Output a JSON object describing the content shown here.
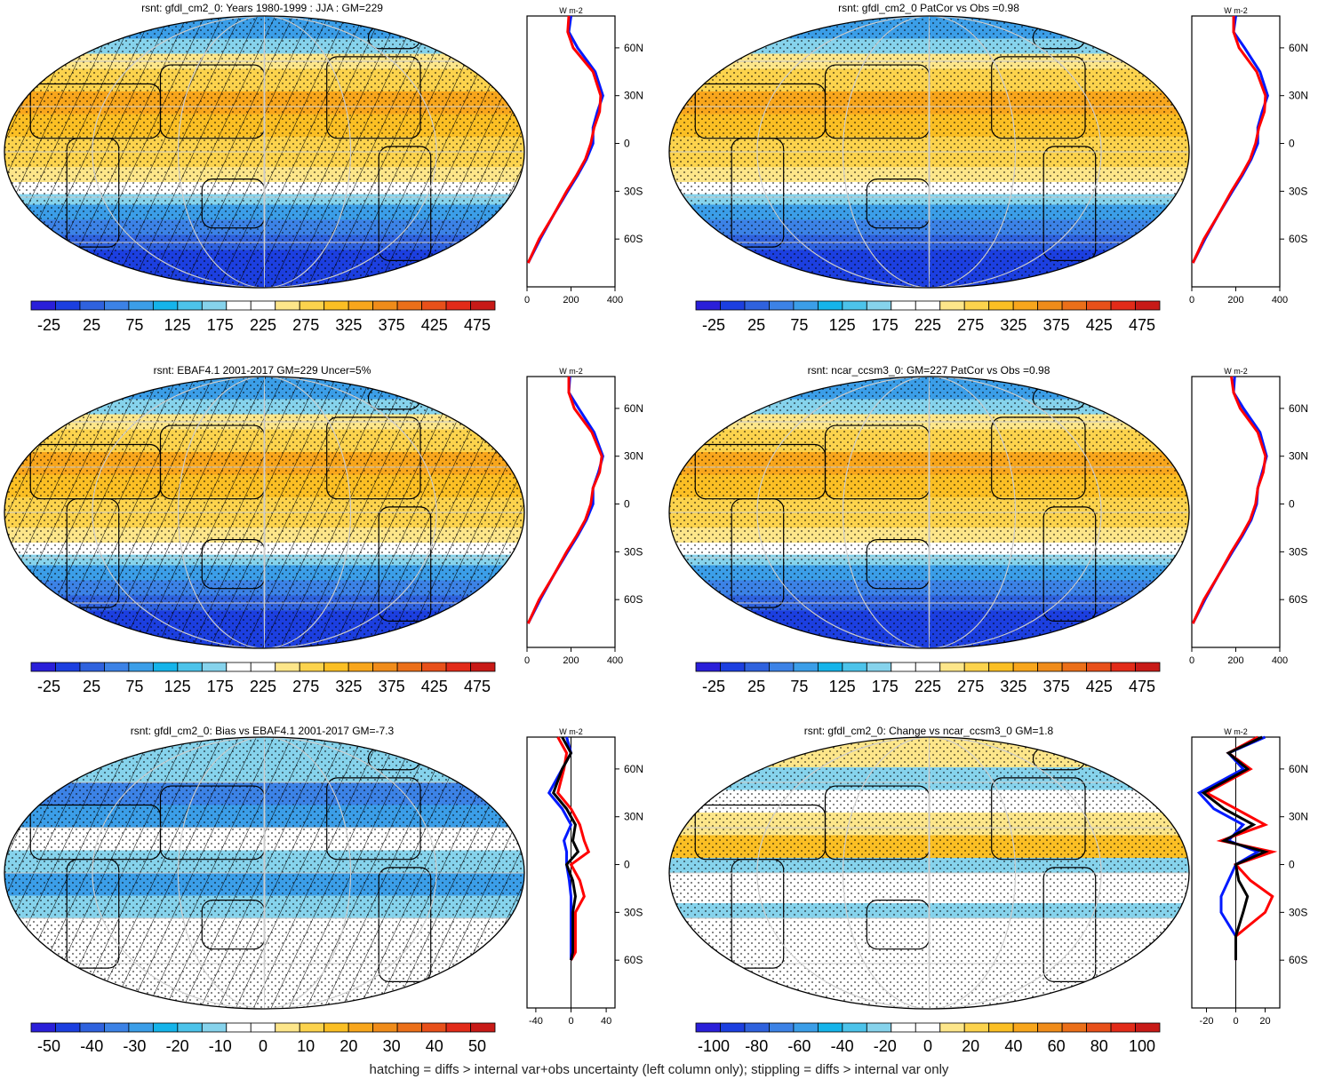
{
  "footer": "hatching = diffs > internal var+obs uncertainty (left column only); stippling = diffs > internal var only",
  "panels": [
    {
      "id": "p1",
      "title": "rsnt: gfdl_cm2_0: Years 1980-1999 : JJA : GM=229",
      "kind": "abs",
      "hatch": true,
      "cb_labels": [
        "-25",
        "25",
        "75",
        "125",
        "175",
        "225",
        "275",
        "325",
        "375",
        "425",
        "475"
      ],
      "zonal_xticks": [
        "0",
        "200",
        "400"
      ]
    },
    {
      "id": "p2",
      "title": "rsnt: gfdl_cm2_0 PatCor vs Obs =0.98",
      "kind": "abs",
      "hatch": false,
      "cb_labels": [
        "-25",
        "25",
        "75",
        "125",
        "175",
        "225",
        "275",
        "325",
        "375",
        "425",
        "475"
      ],
      "zonal_xticks": [
        "0",
        "200",
        "400"
      ]
    },
    {
      "id": "p3",
      "title": "rsnt: EBAF4.1 2001-2017 GM=229 Uncer=5%",
      "kind": "abs",
      "hatch": true,
      "cb_labels": [
        "-25",
        "25",
        "75",
        "125",
        "175",
        "225",
        "275",
        "325",
        "375",
        "425",
        "475"
      ],
      "zonal_xticks": [
        "0",
        "200",
        "400"
      ]
    },
    {
      "id": "p4",
      "title": "rsnt: ncar_ccsm3_0: GM=227 PatCor vs Obs =0.98",
      "kind": "abs",
      "hatch": false,
      "cb_labels": [
        "-25",
        "25",
        "75",
        "125",
        "175",
        "225",
        "275",
        "325",
        "375",
        "425",
        "475"
      ],
      "zonal_xticks": [
        "0",
        "200",
        "400"
      ]
    },
    {
      "id": "p5",
      "title": "rsnt: gfdl_cm2_0: Bias vs EBAF4.1 2001-2017 GM=-7.3",
      "kind": "bias",
      "hatch": true,
      "cb_labels": [
        "-50",
        "-40",
        "-30",
        "-20",
        "-10",
        "0",
        "10",
        "20",
        "30",
        "40",
        "50"
      ],
      "zonal_xticks": [
        "-40",
        "0",
        "40"
      ]
    },
    {
      "id": "p6",
      "title": "rsnt: gfdl_cm2_0: Change vs ncar_ccsm3_0 GM=1.8",
      "kind": "change",
      "hatch": false,
      "cb_labels": [
        "-100",
        "-80",
        "-60",
        "-40",
        "-20",
        "0",
        "20",
        "40",
        "60",
        "80",
        "100"
      ],
      "zonal_xticks": [
        "-20",
        "0",
        "20"
      ]
    }
  ],
  "zonal_unit": "W m-2",
  "lat_ticks": [
    "60N",
    "30N",
    "0",
    "30S",
    "60S"
  ],
  "colors": {
    "diverging": [
      "#2a1fd9",
      "#1c3fe0",
      "#2f62de",
      "#3c82e6",
      "#3b9ee8",
      "#15b4ea",
      "#4cc3ea",
      "#86d3ec",
      "#ffffff",
      "#ffffff",
      "#fde68a",
      "#fcd34d",
      "#fbbf24",
      "#f8a61c",
      "#f08c1a",
      "#eb6f19",
      "#e8501a",
      "#e22b19",
      "#c81a17"
    ],
    "abs_palette": [
      "#2a1fd9",
      "#1c3fe0",
      "#2f62de",
      "#3c82e6",
      "#3b9ee8",
      "#15b4ea",
      "#4cc3ea",
      "#86d3ec",
      "#ffffff",
      "#ffffff",
      "#fde68a",
      "#fcd34d",
      "#fbbf24",
      "#f8a61c",
      "#f08c1a",
      "#eb6f19",
      "#e8501a",
      "#e22b19",
      "#c81a17"
    ],
    "model": "#0019ff",
    "obs": "#ff0000",
    "mean": "#000000"
  },
  "chart_data": [
    {
      "type": "heatmap",
      "panel": "p1",
      "title": "rsnt: gfdl_cm2_0: Years 1980-1999 : JJA : GM=229",
      "zonal_mean": {
        "lat": [
          80,
          70,
          60,
          45,
          30,
          20,
          10,
          0,
          -10,
          -20,
          -30,
          -45,
          -60,
          -75
        ],
        "series": [
          {
            "values": [
              200,
              190,
              230,
              310,
              345,
              320,
              300,
              300,
              270,
              230,
              185,
              120,
              60,
              5
            ]
          },
          {
            "values": [
              190,
              185,
              210,
              300,
              335,
              330,
              305,
              290,
              265,
              225,
              180,
              120,
              55,
              5
            ]
          }
        ],
        "xlim": [
          0,
          400
        ]
      }
    },
    {
      "type": "heatmap",
      "panel": "p2",
      "title": "rsnt: gfdl_cm2_0 PatCor vs Obs =0.98",
      "zonal_mean": {
        "lat": [
          80,
          70,
          60,
          45,
          30,
          20,
          10,
          0,
          -10,
          -20,
          -30,
          -45,
          -60,
          -75
        ],
        "series": [
          {
            "values": [
              200,
              190,
              240,
              310,
              345,
              320,
              300,
              300,
              270,
              230,
              185,
              120,
              60,
              5
            ]
          },
          {
            "values": [
              190,
              190,
              215,
              295,
              335,
              330,
              305,
              290,
              265,
              225,
              180,
              120,
              55,
              5
            ]
          }
        ],
        "xlim": [
          0,
          400
        ]
      }
    },
    {
      "type": "heatmap",
      "panel": "p3",
      "title": "rsnt: EBAF4.1 2001-2017 GM=229 Uncer=5%",
      "zonal_mean": {
        "lat": [
          80,
          70,
          60,
          45,
          30,
          20,
          10,
          0,
          -10,
          -20,
          -30,
          -45,
          -60,
          -75
        ],
        "series": [
          {
            "values": [
              195,
              190,
              235,
              305,
              345,
              325,
              300,
              300,
              270,
              230,
              185,
              120,
              60,
              5
            ]
          },
          {
            "values": [
              190,
              190,
              215,
              295,
              340,
              330,
              300,
              290,
              265,
              225,
              180,
              120,
              55,
              5
            ]
          }
        ],
        "xlim": [
          0,
          400
        ]
      }
    },
    {
      "type": "heatmap",
      "panel": "p4",
      "title": "rsnt: ncar_ccsm3_0: GM=227 PatCor vs Obs =0.98",
      "zonal_mean": {
        "lat": [
          80,
          70,
          60,
          45,
          30,
          20,
          10,
          0,
          -10,
          -20,
          -30,
          -45,
          -60,
          -75
        ],
        "series": [
          {
            "values": [
              195,
              190,
              235,
              310,
              340,
              320,
              300,
              295,
              270,
              230,
              185,
              120,
              60,
              5
            ]
          },
          {
            "values": [
              180,
              190,
              220,
              300,
              335,
              325,
              300,
              290,
              265,
              225,
              180,
              120,
              55,
              5
            ]
          }
        ],
        "xlim": [
          0,
          400
        ]
      }
    },
    {
      "type": "heatmap",
      "panel": "p5",
      "title": "rsnt: gfdl_cm2_0: Bias vs EBAF4.1 2001-2017 GM=-7.3",
      "zonal_mean": {
        "lat": [
          80,
          70,
          60,
          45,
          35,
          25,
          15,
          8,
          0,
          -10,
          -20,
          -30,
          -45,
          -55,
          -60
        ],
        "series": [
          {
            "values": [
              -5,
              0,
              -10,
              -25,
              -10,
              0,
              -8,
              -5,
              -5,
              -2,
              0,
              0,
              0,
              0,
              0
            ]
          },
          {
            "values": [
              -15,
              -5,
              -8,
              -15,
              0,
              10,
              15,
              20,
              0,
              10,
              15,
              5,
              5,
              5,
              0
            ]
          },
          {
            "values": [
              -10,
              0,
              -10,
              -20,
              -5,
              5,
              2,
              8,
              -5,
              2,
              5,
              2,
              2,
              2,
              0
            ]
          }
        ],
        "xlim": [
          -50,
          50
        ]
      }
    },
    {
      "type": "heatmap",
      "panel": "p6",
      "title": "rsnt: gfdl_cm2_0: Change vs ncar_ccsm3_0 GM=1.8",
      "zonal_mean": {
        "lat": [
          80,
          70,
          60,
          45,
          35,
          25,
          15,
          8,
          0,
          -10,
          -20,
          -30,
          -45,
          -55,
          -60
        ],
        "series": [
          {
            "values": [
              20,
              -5,
              5,
              -25,
              -15,
              5,
              -5,
              15,
              0,
              -5,
              -10,
              -10,
              0,
              0,
              0
            ]
          },
          {
            "values": [
              15,
              -5,
              10,
              -20,
              0,
              20,
              -10,
              25,
              0,
              10,
              25,
              20,
              0,
              0,
              0
            ]
          },
          {
            "values": [
              18,
              -5,
              8,
              -22,
              -8,
              12,
              -8,
              20,
              0,
              2,
              8,
              5,
              0,
              0,
              0
            ]
          }
        ],
        "xlim": [
          -30,
          30
        ]
      }
    }
  ]
}
